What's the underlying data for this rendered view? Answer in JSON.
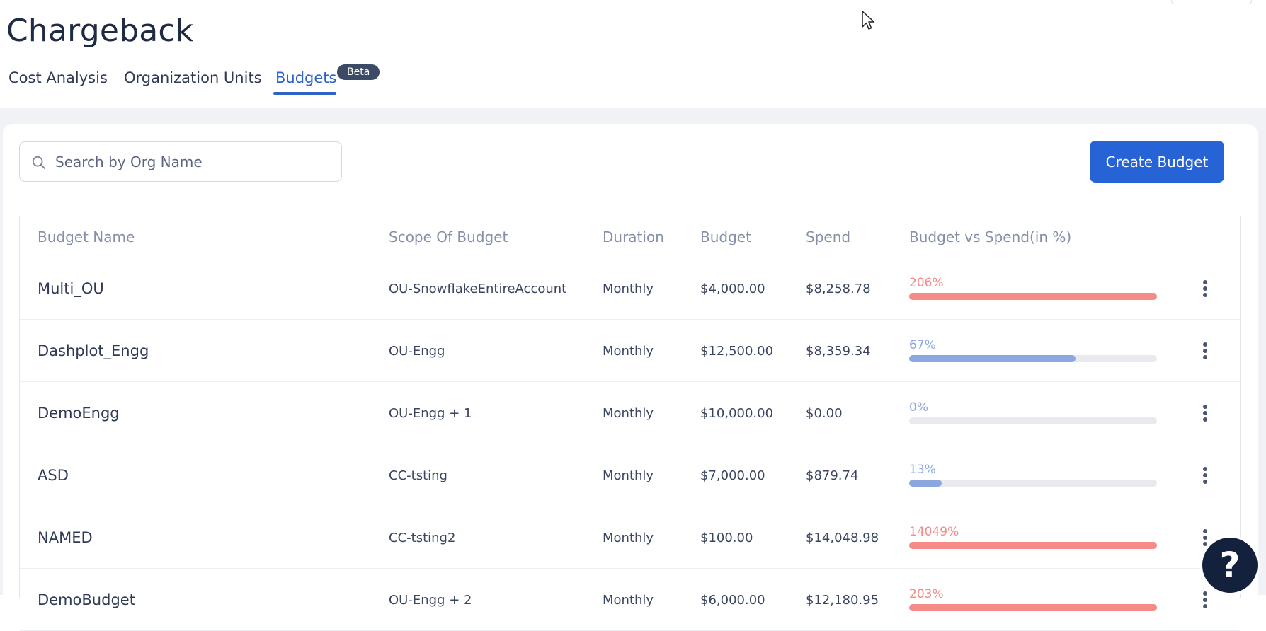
{
  "page": {
    "title": "Chargeback"
  },
  "tabs": [
    {
      "label": "Cost Analysis",
      "active": false
    },
    {
      "label": "Organization Units",
      "active": false
    },
    {
      "label": "Budgets",
      "active": true,
      "badge": "Beta"
    }
  ],
  "search": {
    "placeholder": "Search by Org Name",
    "value": ""
  },
  "actions": {
    "create_label": "Create Budget"
  },
  "table": {
    "columns": [
      "Budget Name",
      "Scope Of Budget",
      "Duration",
      "Budget",
      "Spend",
      "Budget vs Spend(in %)"
    ],
    "rows": [
      {
        "name": "Multi_OU",
        "scope": "OU-SnowflakeEntireAccount",
        "duration": "Monthly",
        "budget": "$4,000.00",
        "spend": "$8,258.78",
        "pct_label": "206%",
        "pct": 206,
        "status": "over"
      },
      {
        "name": "Dashplot_Engg",
        "scope": "OU-Engg",
        "duration": "Monthly",
        "budget": "$12,500.00",
        "spend": "$8,359.34",
        "pct_label": "67%",
        "pct": 67,
        "status": "under"
      },
      {
        "name": "DemoEngg",
        "scope": "OU-Engg + 1",
        "duration": "Monthly",
        "budget": "$10,000.00",
        "spend": "$0.00",
        "pct_label": "0%",
        "pct": 0,
        "status": "under"
      },
      {
        "name": "ASD",
        "scope": "CC-tsting",
        "duration": "Monthly",
        "budget": "$7,000.00",
        "spend": "$879.74",
        "pct_label": "13%",
        "pct": 13,
        "status": "under"
      },
      {
        "name": "NAMED",
        "scope": "CC-tsting2",
        "duration": "Monthly",
        "budget": "$100.00",
        "spend": "$14,048.98",
        "pct_label": "14049%",
        "pct": 14049,
        "status": "over"
      },
      {
        "name": "DemoBudget",
        "scope": "OU-Engg + 2",
        "duration": "Monthly",
        "budget": "$6,000.00",
        "spend": "$12,180.95",
        "pct_label": "203%",
        "pct": 203,
        "status": "over"
      }
    ]
  },
  "colors": {
    "accent": "#2563d6",
    "over": "#f58b86",
    "under": "#8ca7e0",
    "track": "#e8eaef"
  },
  "help": {
    "label": "?"
  },
  "icons": {
    "search": "search-icon",
    "more": "more-vertical-icon",
    "help": "help-icon",
    "cursor": "mouse-cursor-icon"
  }
}
